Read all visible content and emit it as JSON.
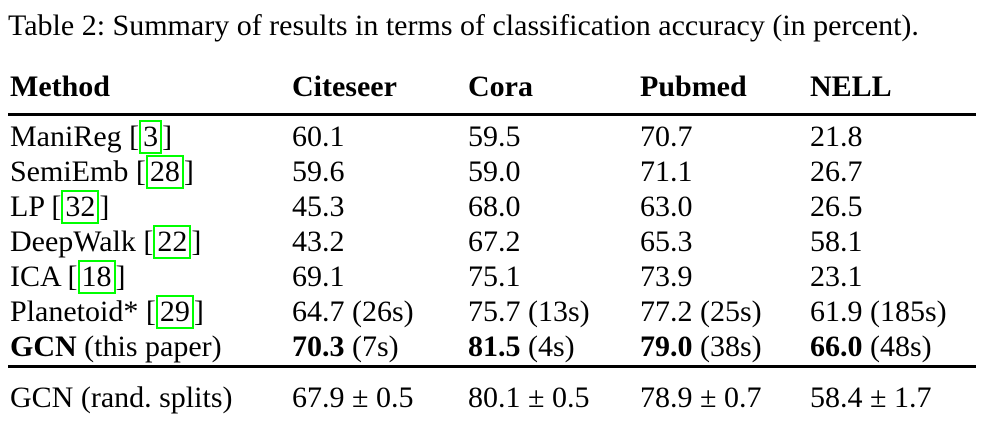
{
  "caption": "Table 2: Summary of results in terms of classification accuracy (in percent).",
  "punct": {
    "open_bracket": "[",
    "close_bracket": "]"
  },
  "colors": {
    "citation_box": "#00ff00",
    "text": "#000000",
    "background": "#ffffff"
  },
  "table": {
    "columns": [
      "Method",
      "Citeseer",
      "Cora",
      "Pubmed",
      "NELL"
    ],
    "rows": [
      {
        "name": "ManiReg ",
        "cite": "3",
        "citeseer": "60.1",
        "cora": "59.5",
        "pubmed": "70.7",
        "nell": "21.8"
      },
      {
        "name": "SemiEmb ",
        "cite": "28",
        "citeseer": "59.6",
        "cora": "59.0",
        "pubmed": "71.1",
        "nell": "26.7"
      },
      {
        "name": "LP ",
        "cite": "32",
        "citeseer": "45.3",
        "cora": "68.0",
        "pubmed": "63.0",
        "nell": "26.5"
      },
      {
        "name": "DeepWalk ",
        "cite": "22",
        "citeseer": "43.2",
        "cora": "67.2",
        "pubmed": "65.3",
        "nell": "58.1"
      },
      {
        "name": "ICA ",
        "cite": "18",
        "citeseer": "69.1",
        "cora": "75.1",
        "pubmed": "73.9",
        "nell": "23.1"
      },
      {
        "name": "Planetoid* ",
        "cite": "29",
        "citeseer": "64.7 (26s)",
        "cora": "75.7 (13s)",
        "pubmed": "77.2 (25s)",
        "nell": "61.9 (185s)"
      }
    ],
    "gcn_row": {
      "name_bold": "GCN",
      "name_rest": " (this paper)",
      "citeseer_bold": "70.3",
      "citeseer_rest": " (7s)",
      "cora_bold": "81.5",
      "cora_rest": " (4s)",
      "pubmed_bold": "79.0",
      "pubmed_rest": " (38s)",
      "nell_bold": "66.0",
      "nell_rest": " (48s)"
    },
    "footer_row": {
      "name": "GCN (rand. splits)",
      "citeseer": "67.9 ± 0.5",
      "cora": "80.1 ± 0.5",
      "pubmed": "78.9 ± 0.7",
      "nell": "58.4 ± 1.7"
    }
  }
}
